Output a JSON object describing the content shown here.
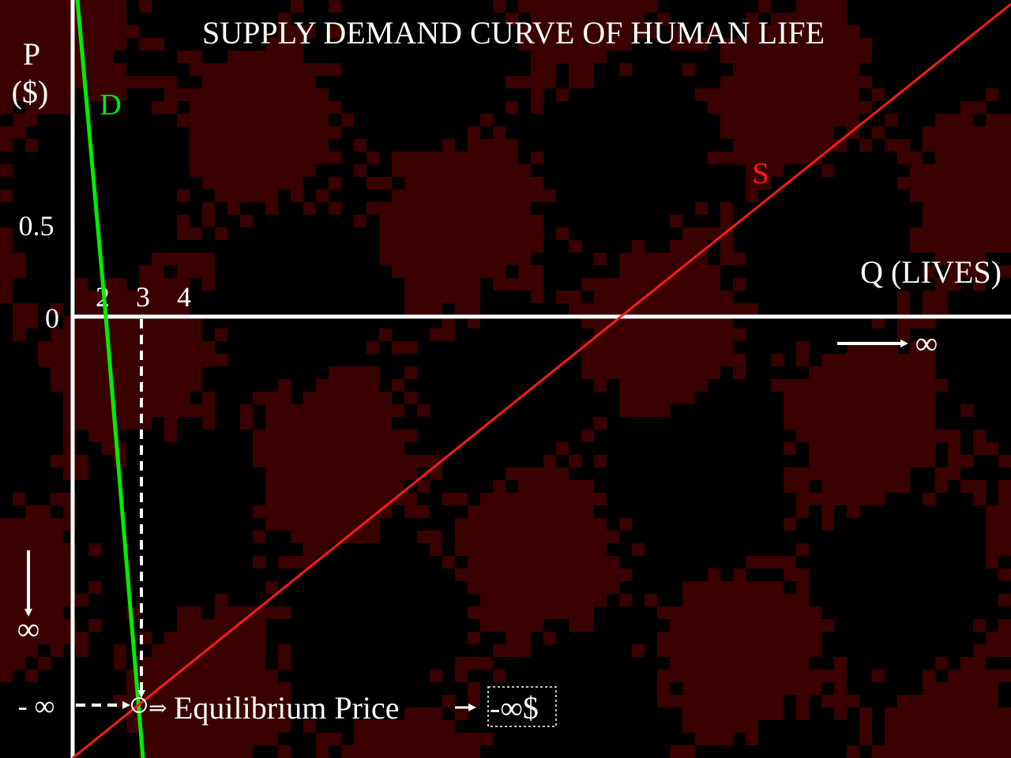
{
  "chart_data": {
    "type": "line",
    "title": "SUPPLY DEMAND CURVE OF HUMAN LIFE",
    "ylabel_line1": "P",
    "ylabel_line2": "($)",
    "xlabel": "Q  (LIVES)",
    "y_ticks": [
      {
        "label": "0.5",
        "value": 0.5
      },
      {
        "label": "0",
        "value": 0
      },
      {
        "label": "- ∞",
        "value": -1.9
      }
    ],
    "x_ticks": [
      {
        "label": "2",
        "value": 2
      },
      {
        "label": "3",
        "value": 3
      },
      {
        "label": "4",
        "value": 4
      }
    ],
    "x_arrow_label": "∞",
    "y_arrow_label": "∞",
    "xlim": [
      0.2,
      23.8
    ],
    "ylim": [
      -2.2,
      1.55
    ],
    "series": [
      {
        "name": "D",
        "color": "#00ee00",
        "points": [
          [
            0.2,
            1.58
          ],
          [
            2.0,
            0.0
          ],
          [
            4.0,
            -2.2
          ]
        ]
      },
      {
        "name": "S",
        "color": "#ff1a1a",
        "points": [
          [
            0.2,
            -2.2
          ],
          [
            13.5,
            0.0
          ],
          [
            23.8,
            1.55
          ]
        ]
      }
    ],
    "equilibrium": {
      "x": 3.8,
      "y": -1.9
    },
    "annotation": {
      "text": "Equilibrium Price",
      "result": "-∞$"
    },
    "colors": {
      "background": "#000000",
      "pattern": "#3a0000",
      "axes": "#ffffff",
      "demand": "#00ee00",
      "supply": "#ff1a1a"
    }
  }
}
